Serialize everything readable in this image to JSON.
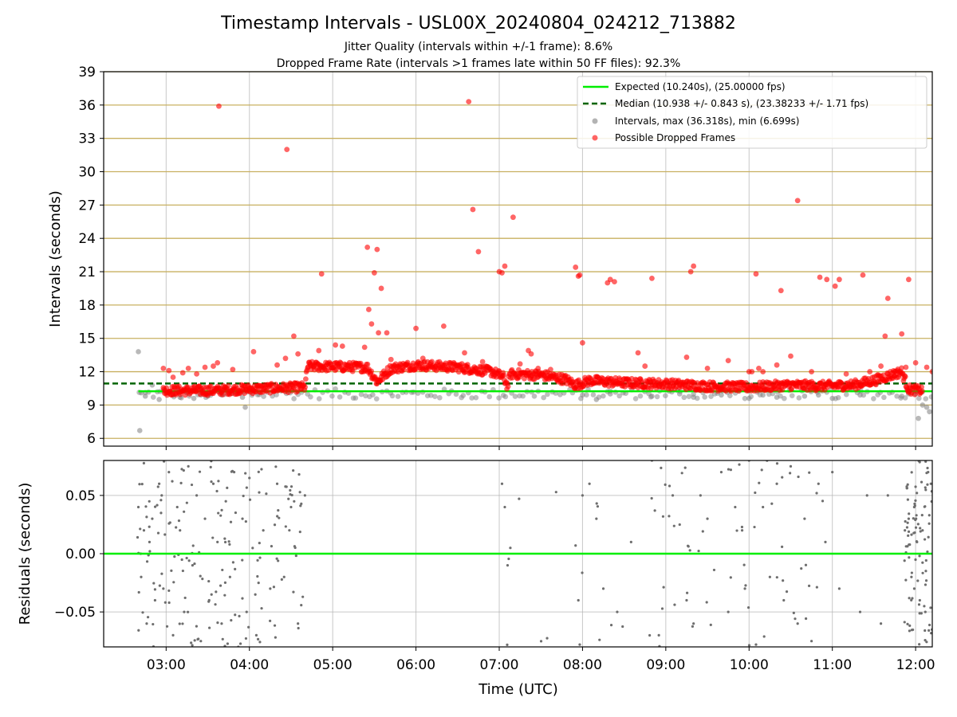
{
  "chart_data": [
    {
      "type": "scatter",
      "title": "Timestamp Intervals - USL00X_20240804_024212_713882",
      "subtitle_lines": [
        "Jitter Quality (intervals within +/-1 frame): 8.6%",
        "Dropped Frame Rate (intervals >1 frames late within 50 FF files): 92.3%"
      ],
      "xlabel": "",
      "ylabel": "Intervals (seconds)",
      "xlim": [
        "02:15",
        "12:12"
      ],
      "ylim": [
        5.3,
        39
      ],
      "x_ticks": [
        "03:00",
        "04:00",
        "05:00",
        "06:00",
        "07:00",
        "08:00",
        "09:00",
        "10:00",
        "11:00",
        "12:00"
      ],
      "y_ticks": [
        6,
        9,
        12,
        15,
        18,
        21,
        24,
        27,
        30,
        33,
        36,
        39
      ],
      "horizontal_reference_lines": [
        6,
        9,
        12,
        15,
        18,
        21,
        24,
        27,
        30,
        33,
        36,
        39
      ],
      "grid": "vertical lines at x ticks",
      "legend_position": "top-right",
      "legend": [
        "Expected (10.240s), (25.00000 fps)",
        "Median (10.938 +/- 0.843 s), (23.38233 +/- 1.71 fps)",
        "Intervals, max (36.318s), min (6.699s)",
        "Possible Dropped Frames"
      ],
      "expected_line": 10.24,
      "median_line": 10.938,
      "colors": {
        "expected": "#00ee00",
        "median": "#006400",
        "intervals": "#808080",
        "dropped": "#ff0000",
        "reference": "#c8b060"
      },
      "band_profile": {
        "description": "dense run of dropped-frame intervals, level in seconds by time",
        "x": [
          "02:58",
          "03:35",
          "03:50",
          "04:40",
          "04:42",
          "05:25",
          "05:32",
          "05:42",
          "06:00",
          "06:30",
          "06:55",
          "07:03",
          "07:06",
          "07:08",
          "07:30",
          "07:48",
          "07:55",
          "08:05",
          "08:30",
          "09:00",
          "09:30",
          "10:00",
          "10:30",
          "10:50",
          "11:15",
          "11:30",
          "11:50",
          "11:55",
          "12:05"
        ],
        "y": [
          10.3,
          10.3,
          10.4,
          10.6,
          12.5,
          12.4,
          11.1,
          12.3,
          12.6,
          12.4,
          12.0,
          11.5,
          10.7,
          11.8,
          11.7,
          11.3,
          10.8,
          11.2,
          11.0,
          10.9,
          10.7,
          10.6,
          10.8,
          10.7,
          10.8,
          11.2,
          12.0,
          10.4,
          10.3
        ]
      },
      "band_coverage": [
        [
          "02:58",
          "12:05"
        ]
      ],
      "intervals_sample": {
        "x": [
          "02:40",
          "02:41",
          "02:42",
          "02:45",
          "02:50",
          "02:55",
          "03:05",
          "03:10",
          "03:15",
          "03:20",
          "03:25",
          "03:30",
          "03:40",
          "03:45",
          "03:55",
          "03:57",
          "08:00",
          "08:10",
          "08:20",
          "08:50",
          "09:10",
          "09:20",
          "09:40",
          "10:00",
          "10:10",
          "10:20",
          "10:40",
          "10:50",
          "11:00",
          "11:20",
          "11:50",
          "11:55",
          "12:00",
          "12:02",
          "12:05",
          "12:08",
          "12:10"
        ],
        "y": [
          13.8,
          6.7,
          10.1,
          9.8,
          10.8,
          9.5,
          9.9,
          9.7,
          10.1,
          9.6,
          9.9,
          9.8,
          9.9,
          10.0,
          9.7,
          8.8,
          9.9,
          9.5,
          10.0,
          9.8,
          10.0,
          9.7,
          9.9,
          9.6,
          9.9,
          9.7,
          9.8,
          9.9,
          9.6,
          9.9,
          9.8,
          10.0,
          10.2,
          7.8,
          9.0,
          8.8,
          8.4
        ]
      },
      "dropped_outliers": {
        "x": [
          "02:58",
          "03:02",
          "03:05",
          "03:12",
          "03:16",
          "03:22",
          "03:28",
          "03:34",
          "03:37",
          "03:38",
          "03:48",
          "04:03",
          "04:20",
          "04:26",
          "04:27",
          "04:32",
          "04:35",
          "04:50",
          "04:52",
          "05:02",
          "05:07",
          "05:23",
          "05:25",
          "05:26",
          "05:28",
          "05:30",
          "05:32",
          "05:33",
          "05:35",
          "05:39",
          "05:42",
          "06:00",
          "06:05",
          "06:20",
          "06:35",
          "06:38",
          "06:41",
          "06:45",
          "06:48",
          "07:00",
          "07:02",
          "07:04",
          "07:10",
          "07:15",
          "07:21",
          "07:23",
          "07:28",
          "07:37",
          "07:55",
          "07:57",
          "07:58",
          "08:00",
          "08:18",
          "08:20",
          "08:23",
          "08:40",
          "08:45",
          "08:50",
          "09:15",
          "09:18",
          "09:20",
          "09:30",
          "09:45",
          "10:00",
          "10:02",
          "10:05",
          "10:07",
          "10:10",
          "10:20",
          "10:23",
          "10:30",
          "10:35",
          "10:45",
          "10:51",
          "10:56",
          "11:02",
          "11:05",
          "11:10",
          "11:22",
          "11:27",
          "11:35",
          "11:38",
          "11:40",
          "11:45",
          "11:50",
          "11:53",
          "11:55",
          "12:00",
          "12:08",
          "12:12"
        ],
        "y": [
          12.3,
          12.1,
          11.5,
          11.9,
          12.3,
          11.8,
          12.4,
          12.5,
          12.8,
          35.9,
          12.2,
          13.8,
          12.6,
          13.2,
          32.0,
          15.2,
          13.6,
          13.9,
          20.8,
          14.4,
          14.3,
          14.2,
          23.2,
          17.6,
          16.3,
          20.9,
          23.0,
          15.5,
          19.5,
          15.5,
          13.1,
          15.9,
          13.2,
          16.1,
          13.7,
          36.3,
          26.6,
          22.8,
          12.9,
          21.0,
          20.9,
          21.5,
          25.9,
          12.7,
          13.9,
          13.6,
          12.3,
          12.2,
          21.4,
          20.6,
          20.7,
          14.6,
          20.0,
          20.3,
          20.1,
          13.7,
          12.5,
          20.4,
          13.3,
          21.0,
          21.5,
          12.3,
          13.0,
          12.0,
          12.0,
          20.8,
          12.3,
          12.0,
          12.6,
          19.3,
          13.4,
          27.4,
          12.0,
          20.5,
          20.3,
          19.7,
          20.3,
          11.8,
          20.7,
          12.0,
          12.5,
          15.2,
          18.6,
          12.0,
          15.4,
          12.4,
          20.3,
          12.8,
          12.4,
          12.0
        ]
      }
    },
    {
      "type": "scatter",
      "title": "",
      "xlabel": "Time (UTC)",
      "ylabel": "Residuals (seconds)",
      "xlim": [
        "02:15",
        "12:12"
      ],
      "ylim": [
        -0.08,
        0.08
      ],
      "x_ticks": [
        "03:00",
        "04:00",
        "05:00",
        "06:00",
        "07:00",
        "08:00",
        "09:00",
        "10:00",
        "11:00",
        "12:00"
      ],
      "y_ticks": [
        "−0.05",
        "0.00",
        "0.05"
      ],
      "y_tick_values": [
        -0.05,
        0.0,
        0.05
      ],
      "zero_line": 0.0,
      "grid": "on",
      "colors": {
        "points": "#6e6e6e",
        "zero": "#00ee00"
      },
      "residual_sample": {
        "x": [
          "02:40",
          "02:42",
          "02:44",
          "02:46",
          "02:48",
          "02:50",
          "02:52",
          "02:55",
          "02:58",
          "03:02",
          "03:05",
          "03:08",
          "03:10",
          "03:13",
          "03:16",
          "03:19",
          "03:22",
          "03:25",
          "03:28",
          "03:31",
          "03:34",
          "03:37",
          "03:40",
          "03:43",
          "03:46",
          "03:49",
          "03:52",
          "03:55",
          "03:58",
          "04:00",
          "04:05",
          "04:10",
          "04:15",
          "04:20",
          "04:25",
          "04:30",
          "04:35",
          "04:40",
          "07:02",
          "07:04",
          "07:06",
          "07:08",
          "07:55",
          "07:57",
          "07:58",
          "08:00",
          "08:05",
          "08:10",
          "08:15",
          "08:25",
          "08:35",
          "08:50",
          "08:55",
          "09:05",
          "09:10",
          "09:15",
          "09:20",
          "09:25",
          "09:30",
          "09:40",
          "09:45",
          "09:50",
          "09:55",
          "09:57",
          "10:00",
          "10:05",
          "10:10",
          "10:15",
          "10:20",
          "10:25",
          "10:30",
          "10:35",
          "10:40",
          "10:45",
          "10:50",
          "10:55",
          "11:00",
          "11:05",
          "11:20",
          "11:25",
          "11:35",
          "11:40",
          "11:55",
          "11:57",
          "11:59",
          "12:01",
          "12:03",
          "12:05",
          "12:07",
          "12:09",
          "12:11"
        ],
        "y": [
          0.04,
          -0.02,
          0.02,
          -0.06,
          0.01,
          0.03,
          -0.04,
          0.06,
          -0.03,
          0.07,
          -0.07,
          0.04,
          0.02,
          -0.05,
          0.075,
          -0.01,
          0.05,
          -0.075,
          0.03,
          -0.04,
          0.06,
          0.01,
          -0.06,
          0.045,
          -0.02,
          0.07,
          -0.08,
          0.03,
          -0.05,
          0.065,
          -0.07,
          0.02,
          -0.03,
          0.06,
          -0.02,
          0.04,
          -0.06,
          0.05,
          0.06,
          0.04,
          -0.01,
          0.005,
          0.007,
          -0.04,
          -0.078,
          0.05,
          0.06,
          0.03,
          -0.03,
          -0.05,
          0.01,
          0.08,
          -0.07,
          0.05,
          0.025,
          -0.04,
          -0.06,
          0.05,
          0.03,
          0.07,
          -0.05,
          0.04,
          0.02,
          -0.03,
          0.08,
          -0.078,
          0.04,
          -0.02,
          0.06,
          -0.04,
          0.075,
          -0.06,
          0.03,
          -0.075,
          0.06,
          0.01,
          0.07,
          -0.03,
          -0.05,
          0.05,
          -0.06,
          0.05,
          0.03,
          -0.02,
          0.04,
          0.01,
          -0.04,
          0.02,
          -0.05,
          0.07,
          0.06
        ]
      }
    }
  ]
}
